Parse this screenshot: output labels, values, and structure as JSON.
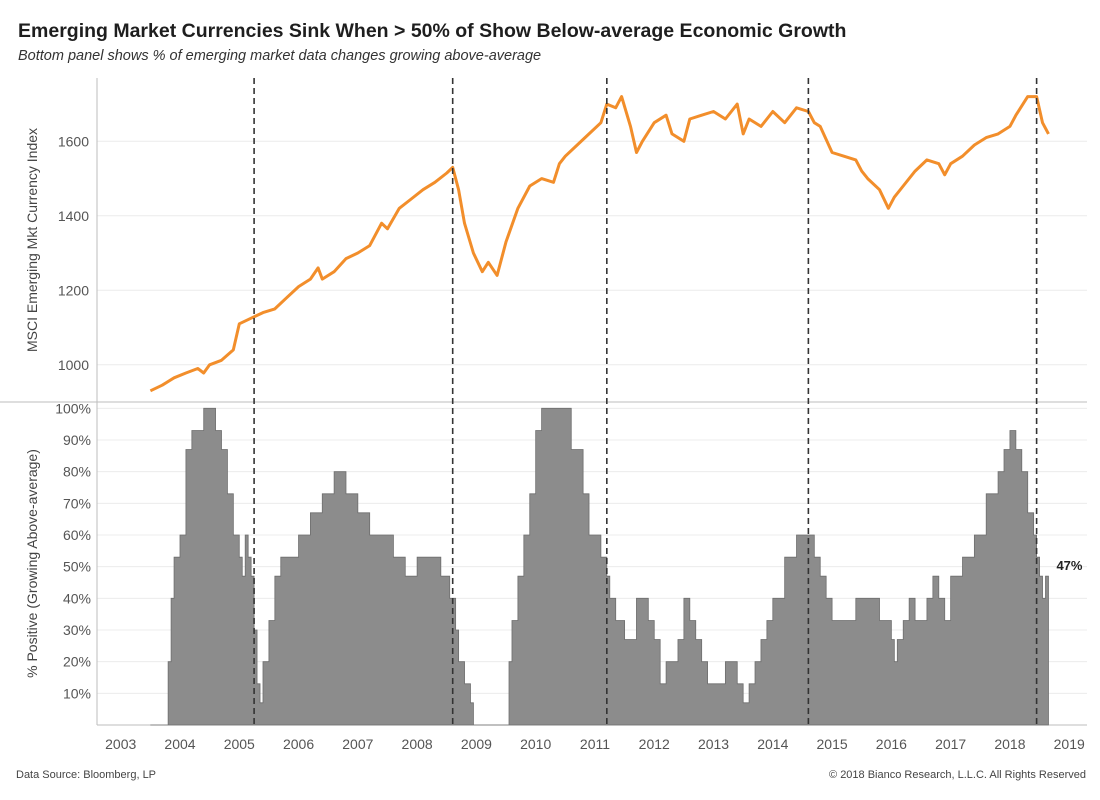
{
  "title": "Emerging Market Currencies Sink When > 50% of Show Below-average Economic Growth",
  "subtitle": "Bottom panel shows % of emerging market data changes growing above-average",
  "footer": {
    "source": "Data Source: Bloomberg, LP",
    "copyright": "© 2018 Bianco Research, L.L.C. All Rights Reserved"
  },
  "colors": {
    "line": "#f28e2b",
    "area": "#8c8c8c",
    "area_stroke": "#6e6e6e",
    "vline": "#333333",
    "grid": "#ececec"
  },
  "chart_data": [
    {
      "type": "line",
      "panel": "top",
      "ylabel": "MSCI Emerging Mkt Currency Index",
      "xlim": [
        2002.6,
        2019.3
      ],
      "ylim": [
        900,
        1770
      ],
      "yticks": [
        1000,
        1200,
        1400,
        1600
      ],
      "series": [
        {
          "x": [
            2003.5,
            2003.7,
            2003.9,
            2004.1,
            2004.3,
            2004.4,
            2004.5,
            2004.7,
            2004.9,
            2005.0,
            2005.2,
            2005.4,
            2005.6,
            2005.8,
            2006.0,
            2006.2,
            2006.33,
            2006.4,
            2006.6,
            2006.8,
            2007.0,
            2007.2,
            2007.4,
            2007.5,
            2007.7,
            2007.9,
            2008.1,
            2008.3,
            2008.5,
            2008.6,
            2008.7,
            2008.8,
            2008.95,
            2009.1,
            2009.2,
            2009.35,
            2009.5,
            2009.7,
            2009.9,
            2010.1,
            2010.3,
            2010.4,
            2010.5,
            2010.7,
            2010.9,
            2011.1,
            2011.2,
            2011.35,
            2011.45,
            2011.6,
            2011.7,
            2011.8,
            2012.0,
            2012.2,
            2012.3,
            2012.5,
            2012.6,
            2012.8,
            2013.0,
            2013.2,
            2013.4,
            2013.5,
            2013.6,
            2013.8,
            2014.0,
            2014.2,
            2014.4,
            2014.6,
            2014.7,
            2014.8,
            2015.0,
            2015.2,
            2015.4,
            2015.5,
            2015.6,
            2015.8,
            2015.95,
            2016.05,
            2016.2,
            2016.4,
            2016.6,
            2016.8,
            2016.9,
            2017.0,
            2017.2,
            2017.4,
            2017.6,
            2017.8,
            2018.0,
            2018.1,
            2018.3,
            2018.45,
            2018.55,
            2018.65
          ],
          "y": [
            930,
            945,
            965,
            978,
            990,
            978,
            1000,
            1012,
            1040,
            1110,
            1125,
            1140,
            1150,
            1180,
            1210,
            1230,
            1260,
            1230,
            1250,
            1285,
            1300,
            1320,
            1380,
            1365,
            1420,
            1445,
            1470,
            1490,
            1515,
            1530,
            1470,
            1380,
            1300,
            1250,
            1275,
            1240,
            1330,
            1420,
            1480,
            1500,
            1490,
            1540,
            1560,
            1590,
            1620,
            1650,
            1700,
            1690,
            1720,
            1640,
            1570,
            1600,
            1650,
            1670,
            1620,
            1600,
            1660,
            1670,
            1680,
            1660,
            1700,
            1620,
            1660,
            1640,
            1680,
            1650,
            1690,
            1680,
            1650,
            1640,
            1570,
            1560,
            1550,
            1520,
            1500,
            1470,
            1420,
            1450,
            1480,
            1520,
            1550,
            1540,
            1510,
            1540,
            1560,
            1590,
            1610,
            1620,
            1640,
            1670,
            1720,
            1720,
            1650,
            1620
          ]
        }
      ]
    },
    {
      "type": "area",
      "panel": "bottom",
      "ylabel": "% Positive (Growing Above-average)",
      "xlim": [
        2002.6,
        2019.3
      ],
      "ylim": [
        0,
        102
      ],
      "yticks": [
        10,
        20,
        30,
        40,
        50,
        60,
        70,
        80,
        90,
        100
      ],
      "ytick_labels": [
        "10%",
        "20%",
        "30%",
        "40%",
        "50%",
        "60%",
        "70%",
        "80%",
        "90%",
        "100%"
      ],
      "xticks": [
        2003,
        2004,
        2005,
        2006,
        2007,
        2008,
        2009,
        2010,
        2011,
        2012,
        2013,
        2014,
        2015,
        2016,
        2017,
        2018,
        2019
      ],
      "xtick_labels": [
        "2003",
        "2004",
        "2005",
        "2006",
        "2007",
        "2008",
        "2009",
        "2010",
        "2011",
        "2012",
        "2013",
        "2014",
        "2015",
        "2016",
        "2017",
        "2018",
        "2019"
      ],
      "end_label": "47%",
      "series": [
        {
          "x": [
            2003.5,
            2003.75,
            2003.8,
            2003.85,
            2003.9,
            2004.0,
            2004.1,
            2004.2,
            2004.3,
            2004.4,
            2004.5,
            2004.6,
            2004.7,
            2004.8,
            2004.9,
            2005.0,
            2005.05,
            2005.1,
            2005.15,
            2005.2,
            2005.25,
            2005.3,
            2005.35,
            2005.4,
            2005.5,
            2005.6,
            2005.7,
            2005.8,
            2006.0,
            2006.2,
            2006.4,
            2006.6,
            2006.8,
            2007.0,
            2007.2,
            2007.4,
            2007.6,
            2007.8,
            2008.0,
            2008.2,
            2008.4,
            2008.55,
            2008.65,
            2008.7,
            2008.8,
            2008.9,
            2008.95,
            2009.0,
            2009.5,
            2009.55,
            2009.6,
            2009.7,
            2009.8,
            2009.9,
            2010.0,
            2010.1,
            2010.2,
            2010.4,
            2010.6,
            2010.8,
            2010.9,
            2011.0,
            2011.1,
            2011.2,
            2011.25,
            2011.35,
            2011.5,
            2011.7,
            2011.9,
            2012.0,
            2012.1,
            2012.2,
            2012.3,
            2012.4,
            2012.5,
            2012.6,
            2012.7,
            2012.8,
            2012.9,
            2013.0,
            2013.1,
            2013.2,
            2013.3,
            2013.4,
            2013.5,
            2013.6,
            2013.7,
            2013.8,
            2013.9,
            2014.0,
            2014.2,
            2014.4,
            2014.6,
            2014.7,
            2014.8,
            2014.9,
            2015.0,
            2015.1,
            2015.2,
            2015.4,
            2015.6,
            2015.8,
            2016.0,
            2016.05,
            2016.1,
            2016.2,
            2016.3,
            2016.4,
            2016.5,
            2016.6,
            2016.7,
            2016.8,
            2016.9,
            2017.0,
            2017.2,
            2017.4,
            2017.6,
            2017.8,
            2017.9,
            2018.0,
            2018.1,
            2018.2,
            2018.3,
            2018.4,
            2018.45,
            2018.5,
            2018.55,
            2018.6,
            2018.65
          ],
          "y": [
            0,
            0,
            20,
            40,
            53,
            60,
            87,
            93,
            93,
            100,
            100,
            93,
            87,
            73,
            60,
            53,
            47,
            60,
            53,
            47,
            30,
            13,
            7,
            20,
            33,
            47,
            53,
            53,
            60,
            67,
            73,
            80,
            73,
            67,
            60,
            60,
            53,
            47,
            53,
            53,
            47,
            40,
            30,
            20,
            13,
            7,
            0,
            0,
            0,
            20,
            33,
            47,
            60,
            73,
            93,
            100,
            100,
            100,
            87,
            73,
            60,
            60,
            53,
            47,
            40,
            33,
            27,
            40,
            33,
            27,
            13,
            20,
            20,
            27,
            40,
            33,
            27,
            20,
            13,
            13,
            13,
            20,
            20,
            13,
            7,
            13,
            20,
            27,
            33,
            40,
            53,
            60,
            60,
            53,
            47,
            40,
            33,
            33,
            33,
            40,
            40,
            33,
            27,
            20,
            27,
            33,
            40,
            33,
            33,
            40,
            47,
            40,
            33,
            47,
            53,
            60,
            73,
            80,
            87,
            93,
            87,
            80,
            67,
            60,
            53,
            47,
            40,
            47,
            47
          ]
        }
      ],
      "vlines": [
        2005.25,
        2008.6,
        2011.2,
        2014.6,
        2018.45
      ]
    }
  ]
}
